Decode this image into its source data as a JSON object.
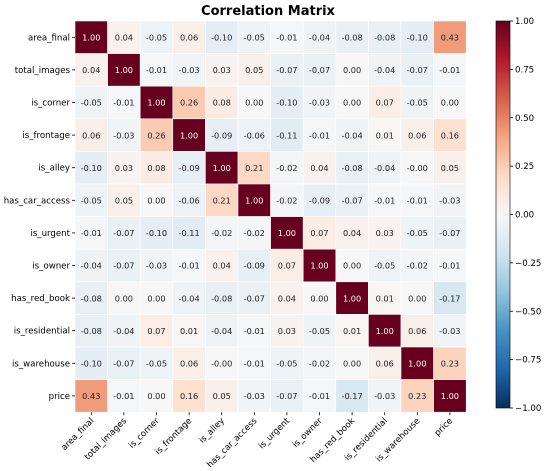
{
  "chart_data": {
    "type": "heatmap",
    "title": "Correlation Matrix",
    "labels": [
      "area_final",
      "total_images",
      "is_corner",
      "is_frontage",
      "is_alley",
      "has_car_access",
      "is_urgent",
      "is_owner",
      "has_red_book",
      "is_residential",
      "is_warehouse",
      "price"
    ],
    "matrix": [
      [
        1.0,
        0.04,
        -0.05,
        0.06,
        -0.1,
        -0.05,
        -0.01,
        -0.04,
        -0.08,
        -0.08,
        -0.1,
        0.43
      ],
      [
        0.04,
        1.0,
        -0.01,
        -0.03,
        0.03,
        0.05,
        -0.07,
        -0.07,
        0.0,
        -0.04,
        -0.07,
        -0.01
      ],
      [
        -0.05,
        -0.01,
        1.0,
        0.26,
        0.08,
        0.0,
        -0.1,
        -0.03,
        0.0,
        0.07,
        -0.05,
        0.0
      ],
      [
        0.06,
        -0.03,
        0.26,
        1.0,
        -0.09,
        -0.06,
        -0.11,
        -0.01,
        -0.04,
        0.01,
        0.06,
        0.16
      ],
      [
        -0.1,
        0.03,
        0.08,
        -0.09,
        1.0,
        0.21,
        -0.02,
        0.04,
        -0.08,
        -0.04,
        -0.0,
        0.05
      ],
      [
        -0.05,
        0.05,
        0.0,
        -0.06,
        0.21,
        1.0,
        -0.02,
        -0.09,
        -0.07,
        -0.01,
        -0.01,
        -0.03
      ],
      [
        -0.01,
        -0.07,
        -0.1,
        -0.11,
        -0.02,
        -0.02,
        1.0,
        0.07,
        0.04,
        0.03,
        -0.05,
        -0.07
      ],
      [
        -0.04,
        -0.07,
        -0.03,
        -0.01,
        0.04,
        -0.09,
        0.07,
        1.0,
        0.0,
        -0.05,
        -0.02,
        -0.01
      ],
      [
        -0.08,
        0.0,
        0.0,
        -0.04,
        -0.08,
        -0.07,
        0.04,
        0.0,
        1.0,
        0.01,
        0.0,
        -0.17
      ],
      [
        -0.08,
        -0.04,
        0.07,
        0.01,
        -0.04,
        -0.01,
        0.03,
        -0.05,
        0.01,
        1.0,
        0.06,
        -0.03
      ],
      [
        -0.1,
        -0.07,
        -0.05,
        0.06,
        -0.0,
        -0.01,
        -0.05,
        -0.02,
        0.0,
        0.06,
        1.0,
        0.23
      ],
      [
        0.43,
        -0.01,
        0.0,
        0.16,
        0.05,
        -0.03,
        -0.07,
        -0.01,
        -0.17,
        -0.03,
        0.23,
        1.0
      ]
    ],
    "value_range": [
      -1.0,
      1.0
    ],
    "colormap": "RdBu_r",
    "colorbar_ticks": [
      1.0,
      0.75,
      0.5,
      0.25,
      0.0,
      -0.25,
      -0.5,
      -0.75,
      -1.0
    ],
    "colorbar_tick_labels": [
      "1.00",
      "0.75",
      "0.50",
      "0.25",
      "0.00",
      "−0.25",
      "−0.50",
      "−0.75",
      "−1.00"
    ],
    "colors": {
      "min": "#053061",
      "max": "#67001f",
      "center": "#f7f7f7",
      "cell_border": "#ffffff"
    }
  }
}
